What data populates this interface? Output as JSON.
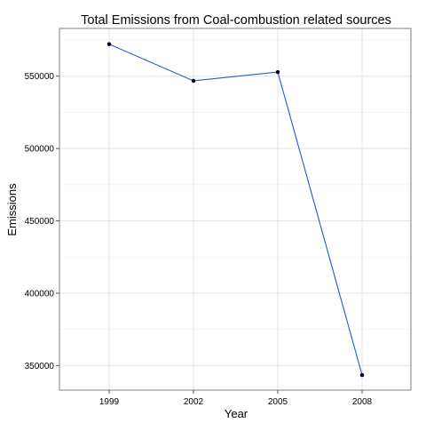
{
  "chart_data": {
    "type": "line",
    "title": "Total Emissions from Coal-combustion related sources",
    "xlabel": "Year",
    "ylabel": "Emissions",
    "categories": [
      "1999",
      "2002",
      "2005",
      "2008"
    ],
    "series": [
      {
        "values": [
          572126,
          546789,
          552881,
          343432
        ]
      }
    ],
    "ylim": [
      333000,
      583000
    ],
    "y_ticks": [
      350000,
      400000,
      450000,
      500000,
      550000
    ],
    "y_tick_labels": [
      "350000",
      "400000",
      "450000",
      "500000",
      "550000"
    ],
    "grid": true,
    "legend": "none",
    "colors": {
      "line": "#1f5bd6",
      "point": "#000000",
      "grid_major": "#e5e5e5",
      "grid_minor": "#f3f3f3",
      "panel_border": "#7f7f7f",
      "text": "#000000"
    }
  }
}
